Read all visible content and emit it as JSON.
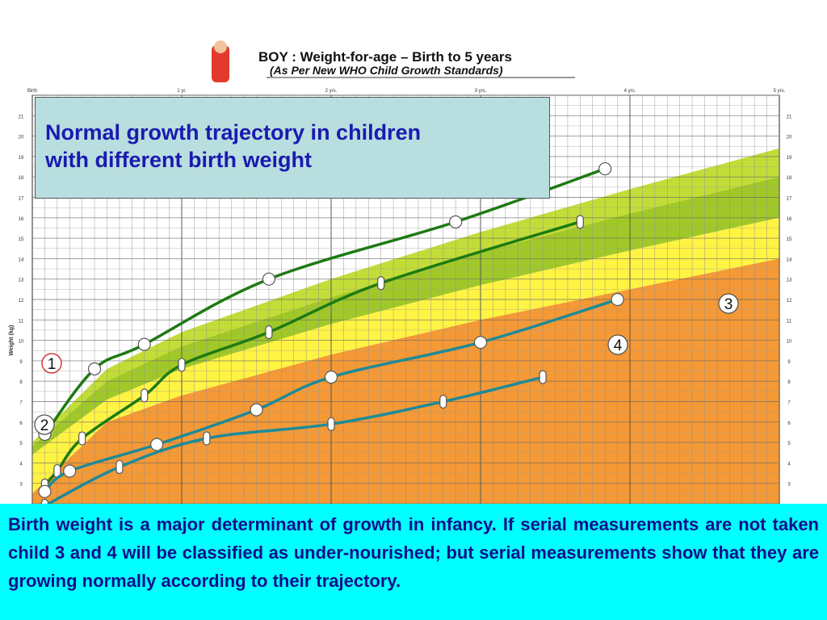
{
  "chart_header": {
    "title": "BOY : Weight-for-age – Birth to 5 years",
    "subtitle": "(As Per New WHO Child Growth Standards)",
    "ylabel": "Weight (kg)"
  },
  "overlay_title": {
    "line1": "Normal growth trajectory in children",
    "line2": "with different  birth weight"
  },
  "caption": "Birth weight is a major determinant of  growth in infancy. If serial measurements are not taken child 3 and 4  will be classified as under-nourished; but  serial measurements show that  they  are growing normally  according to their trajectory.",
  "colors": {
    "green_band": "#9cc51e",
    "light_green_band": "#c6df3a",
    "yellow_band": "#fff23a",
    "orange_band": "#f3932b",
    "dark_green_line": "#1d7a12",
    "teal_line": "#1e8a98",
    "caption_bg": "#00ffff",
    "title_box_bg": "#b9dedf",
    "title_text": "#1a1ab0"
  },
  "chart_data": {
    "type": "line",
    "title": "BOY : Weight-for-age – Birth to 5 years",
    "subtitle": "(As Per New WHO Child Growth Standards)",
    "xlabel": "",
    "ylabel": "Weight (kg)",
    "x_unit": "months",
    "xlim": [
      0,
      60
    ],
    "ylim": [
      2,
      22
    ],
    "x_ticks": [
      {
        "month": 0,
        "label": "Birth"
      },
      {
        "month": 12,
        "label": "1 yr."
      },
      {
        "month": 24,
        "label": "2 yrs."
      },
      {
        "month": 36,
        "label": "3 yrs."
      },
      {
        "month": 48,
        "label": "4 yrs."
      },
      {
        "month": 60,
        "label": "5 yrs."
      }
    ],
    "y_ticks": [
      3,
      4,
      5,
      6,
      7,
      8,
      9,
      10,
      11,
      12,
      13,
      14,
      15,
      16,
      17,
      18,
      19,
      20,
      21
    ],
    "grid": true,
    "bands": [
      {
        "name": "",
        "color": "green_band",
        "lower": [
          [
            0,
            4.4
          ],
          [
            6,
            7.1
          ],
          [
            12,
            8.6
          ],
          [
            24,
            10.8
          ],
          [
            36,
            12.7
          ],
          [
            48,
            14.4
          ],
          [
            60,
            16.0
          ]
        ],
        "upper": [
          [
            0,
            5.0
          ],
          [
            6,
            8.6
          ],
          [
            12,
            10.4
          ],
          [
            24,
            13.0
          ],
          [
            36,
            15.3
          ],
          [
            48,
            17.4
          ],
          [
            60,
            19.4
          ]
        ]
      },
      {
        "name": "",
        "color": "yellow_band",
        "lower": [
          [
            0,
            2.5
          ],
          [
            6,
            6.0
          ],
          [
            12,
            7.3
          ],
          [
            24,
            9.3
          ],
          [
            36,
            11.0
          ],
          [
            48,
            12.5
          ],
          [
            60,
            14.0
          ]
        ],
        "upper": [
          [
            0,
            4.4
          ],
          [
            6,
            7.1
          ],
          [
            12,
            8.6
          ],
          [
            24,
            10.8
          ],
          [
            36,
            12.7
          ],
          [
            48,
            14.4
          ],
          [
            60,
            16.0
          ]
        ]
      },
      {
        "name": "",
        "color": "orange_band",
        "lower": [
          [
            0,
            2.0
          ],
          [
            60,
            2.0
          ]
        ],
        "upper": [
          [
            0,
            2.5
          ],
          [
            6,
            6.0
          ],
          [
            12,
            7.3
          ],
          [
            24,
            9.3
          ],
          [
            36,
            11.0
          ],
          [
            48,
            12.5
          ],
          [
            60,
            14.0
          ]
        ]
      }
    ],
    "series": [
      {
        "name": "1",
        "color": "dark_green_line",
        "points": [
          [
            1,
            5.4
          ],
          [
            5,
            8.6
          ],
          [
            9,
            9.8
          ],
          [
            19,
            13.0
          ],
          [
            34,
            15.8
          ],
          [
            46,
            18.4
          ]
        ]
      },
      {
        "name": "2",
        "color": "dark_green_line",
        "points": [
          [
            1,
            2.9
          ],
          [
            2,
            3.6
          ],
          [
            4,
            5.2
          ],
          [
            9,
            7.3
          ],
          [
            12,
            8.8
          ],
          [
            19,
            10.4
          ],
          [
            28,
            12.8
          ],
          [
            44,
            15.8
          ]
        ]
      },
      {
        "name": "3",
        "color": "teal_line",
        "points": [
          [
            1,
            2.6
          ],
          [
            3,
            3.6
          ],
          [
            10,
            4.9
          ],
          [
            18,
            6.6
          ],
          [
            24,
            8.2
          ],
          [
            36,
            9.9
          ],
          [
            47,
            12.0
          ]
        ]
      },
      {
        "name": "4",
        "color": "teal_line",
        "points": [
          [
            1,
            1.9
          ],
          [
            7,
            3.8
          ],
          [
            14,
            5.2
          ],
          [
            24,
            5.9
          ],
          [
            33,
            7.0
          ],
          [
            41,
            8.2
          ]
        ]
      }
    ]
  }
}
